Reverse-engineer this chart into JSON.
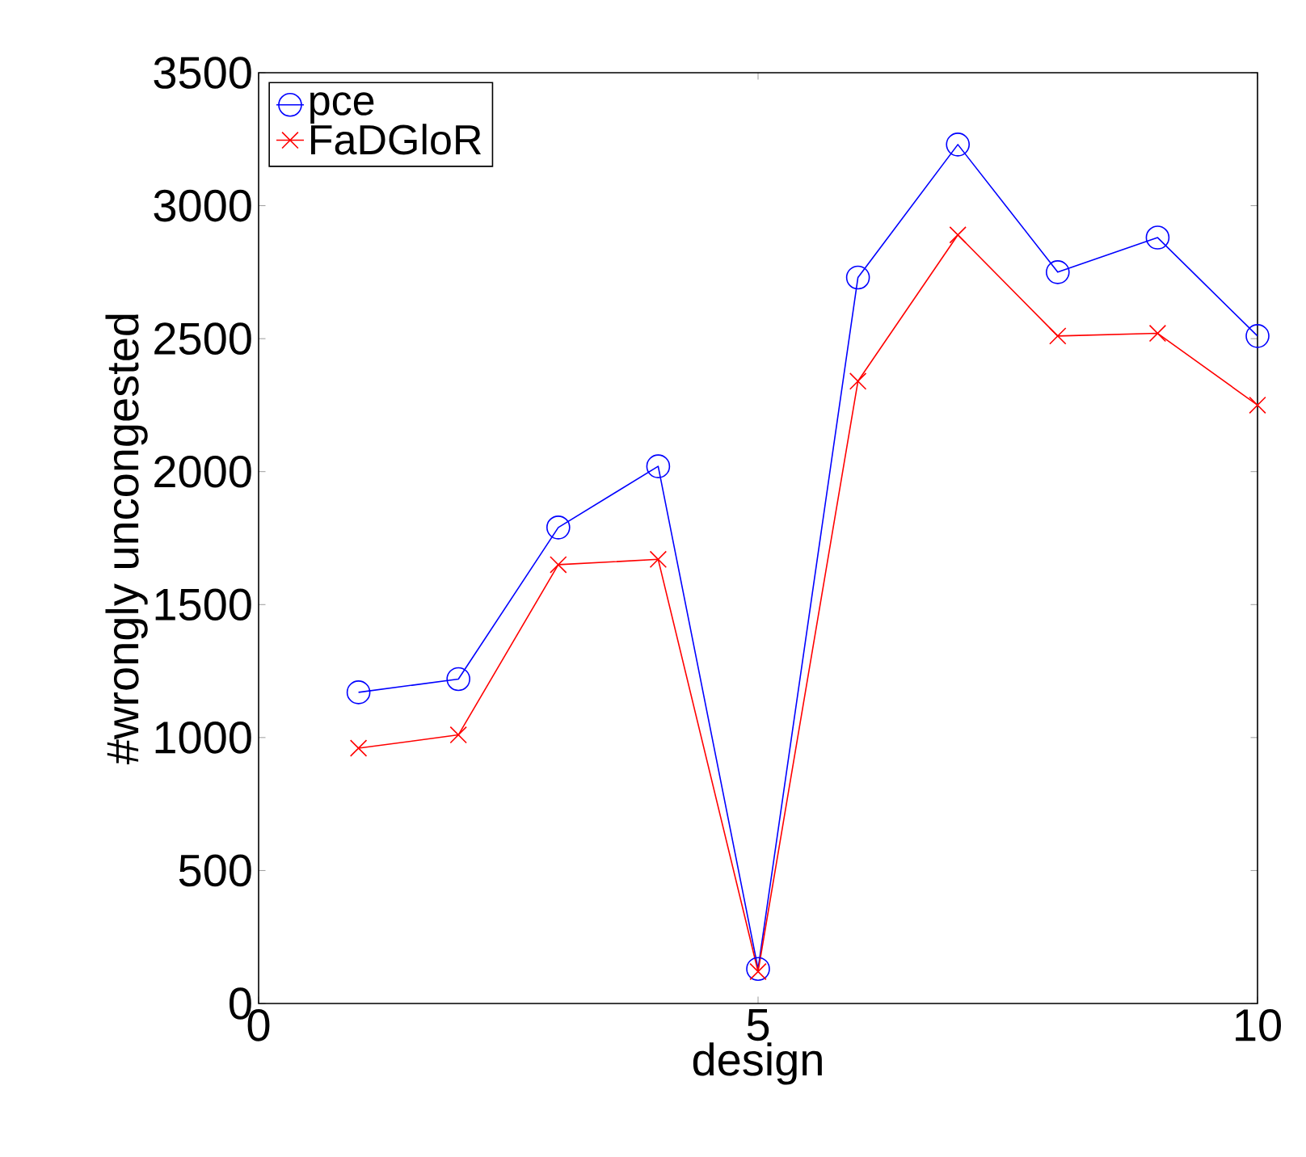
{
  "chart_data": {
    "type": "line",
    "xlabel": "design",
    "ylabel": "#wrongly uncongested",
    "x": [
      1,
      2,
      3,
      4,
      5,
      6,
      7,
      8,
      9,
      10
    ],
    "series": [
      {
        "name": "pce",
        "color": "#0000ff",
        "marker": "circle",
        "values": [
          1170,
          1220,
          1790,
          2020,
          130,
          2730,
          3230,
          2750,
          2880,
          2510
        ]
      },
      {
        "name": "FaDGloR",
        "color": "#ff0000",
        "marker": "cross",
        "values": [
          960,
          1010,
          1650,
          1670,
          120,
          2340,
          2890,
          2510,
          2520,
          2250
        ]
      }
    ],
    "xlim": [
      0,
      10
    ],
    "ylim": [
      0,
      3500
    ],
    "xticks": [
      0,
      5,
      10
    ],
    "yticks": [
      0,
      500,
      1000,
      1500,
      2000,
      2500,
      3000,
      3500
    ],
    "legend": "top left",
    "grid": false,
    "line_style": "solid"
  }
}
